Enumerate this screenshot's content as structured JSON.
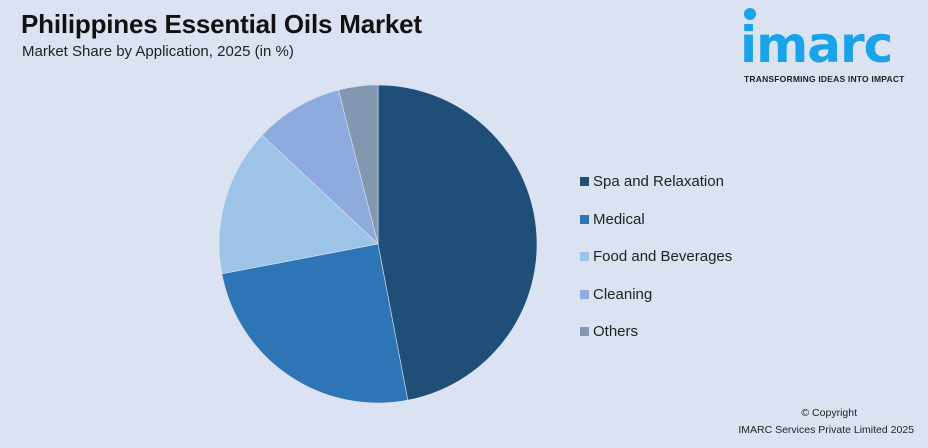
{
  "header": {
    "title": "Philippines Essential Oils Market",
    "subtitle": "Market Share by Application, 2025 (in %)"
  },
  "logo": {
    "word": "imarc",
    "tagline": "TRANSFORMING IDEAS INTO IMPACT",
    "color": "#1aa3e8"
  },
  "legend": {
    "items": [
      {
        "label": "Spa and Relaxation",
        "color": "#1f4e79"
      },
      {
        "label": "Medical",
        "color": "#2e75b6"
      },
      {
        "label": "Food and Beverages",
        "color": "#9dc3e6"
      },
      {
        "label": "Cleaning",
        "color": "#8faadc"
      },
      {
        "label": "Others",
        "color": "#8497b0"
      }
    ]
  },
  "footer": {
    "copyright": "© Copyright",
    "company": "IMARC Services Private Limited 2025"
  },
  "chart_data": {
    "type": "pie",
    "title": "Philippines Essential Oils Market",
    "subtitle": "Market Share by Application, 2025 (in %)",
    "categories": [
      "Spa and Relaxation",
      "Medical",
      "Food and Beverages",
      "Cleaning",
      "Others"
    ],
    "values": [
      47,
      25,
      15,
      9,
      4
    ],
    "colors": [
      "#1f4e79",
      "#2e75b6",
      "#9dc3e6",
      "#8faadc",
      "#8497b0"
    ],
    "legend_position": "right",
    "start_angle_deg": 0,
    "direction": "clockwise"
  }
}
